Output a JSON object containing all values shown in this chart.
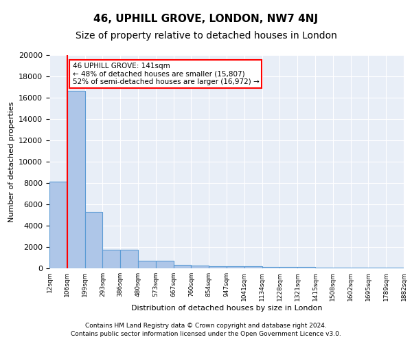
{
  "title": "46, UPHILL GROVE, LONDON, NW7 4NJ",
  "subtitle": "Size of property relative to detached houses in London",
  "xlabel": "Distribution of detached houses by size in London",
  "ylabel": "Number of detached properties",
  "bar_values": [
    8100,
    16650,
    5300,
    1750,
    1750,
    700,
    700,
    300,
    250,
    220,
    200,
    175,
    150,
    130,
    110,
    90,
    75,
    60,
    50,
    40
  ],
  "bin_labels": [
    "12sqm",
    "106sqm",
    "199sqm",
    "293sqm",
    "386sqm",
    "480sqm",
    "573sqm",
    "667sqm",
    "760sqm",
    "854sqm",
    "947sqm",
    "1041sqm",
    "1134sqm",
    "1228sqm",
    "1321sqm",
    "1415sqm",
    "1508sqm",
    "1602sqm",
    "1695sqm",
    "1789sqm",
    "1882sqm"
  ],
  "bar_color": "#aec6e8",
  "bar_edge_color": "#5b9bd5",
  "red_line_x": 1,
  "annotation_text": "46 UPHILL GROVE: 141sqm\n← 48% of detached houses are smaller (15,807)\n52% of semi-detached houses are larger (16,972) →",
  "annotation_box_color": "white",
  "annotation_box_edge": "red",
  "ylim": [
    0,
    20000
  ],
  "yticks": [
    0,
    2000,
    4000,
    6000,
    8000,
    10000,
    12000,
    14000,
    16000,
    18000,
    20000
  ],
  "background_color": "#e8eef7",
  "footer_line1": "Contains HM Land Registry data © Crown copyright and database right 2024.",
  "footer_line2": "Contains public sector information licensed under the Open Government Licence v3.0.",
  "title_fontsize": 11,
  "subtitle_fontsize": 10
}
